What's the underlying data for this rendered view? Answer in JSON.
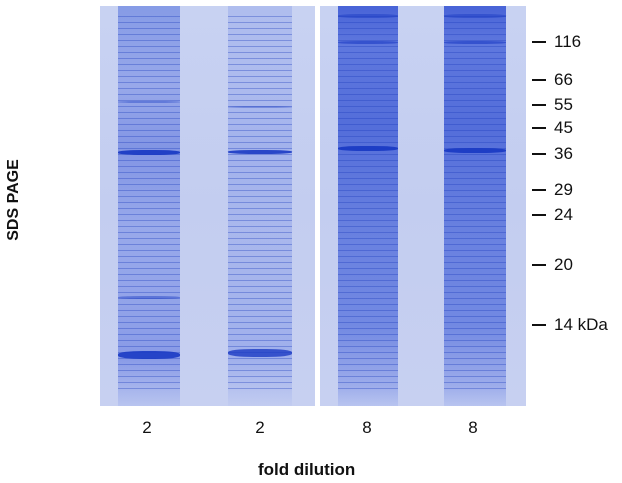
{
  "figure": {
    "vertical_title": "SDS PAGE",
    "bottom_title": "fold dilution"
  },
  "lanes": [
    {
      "label": "2",
      "intensity": "light"
    },
    {
      "label": "2",
      "intensity": "faint"
    },
    {
      "label": "8",
      "intensity": "dense"
    },
    {
      "label": "8",
      "intensity": "dense"
    }
  ],
  "markers": [
    {
      "label": "116"
    },
    {
      "label": "66"
    },
    {
      "label": "55"
    },
    {
      "label": "45"
    },
    {
      "label": "36"
    },
    {
      "label": "29"
    },
    {
      "label": "24"
    },
    {
      "label": "20"
    },
    {
      "label": "14 kDa"
    }
  ],
  "colors": {
    "gel_background": "#c6cff1",
    "protein_band": "#1b3bc4",
    "text": "#111111"
  }
}
